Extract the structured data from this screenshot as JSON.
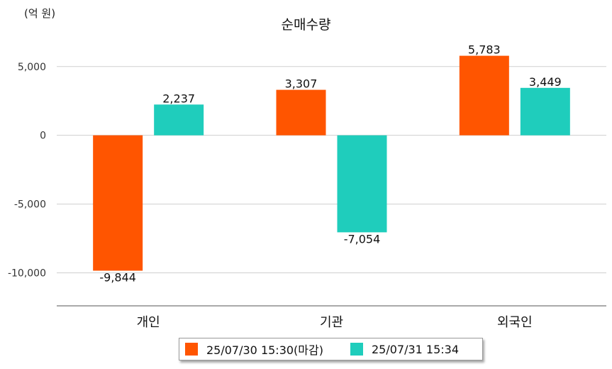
{
  "chart_data": {
    "type": "bar",
    "title": "순매수량",
    "unit_label": "(억 원)",
    "categories": [
      "개인",
      "기관",
      "외국인"
    ],
    "series": [
      {
        "name": "25/07/30 15:30(마감)",
        "color": "#ff5500",
        "values": [
          -9844,
          3307,
          5783
        ],
        "labels": [
          "-9,844",
          "3,307",
          "5,783"
        ]
      },
      {
        "name": "25/07/31 15:34",
        "color": "#1fcdbc",
        "values": [
          2237,
          -7054,
          3449
        ],
        "labels": [
          "2,237",
          "-7,054",
          "3,449"
        ]
      }
    ],
    "yticks": [
      5000,
      0,
      -5000,
      -10000
    ],
    "ytick_labels": [
      "5,000",
      "0",
      "-5,000",
      "-10,000"
    ],
    "ylim": [
      -12400,
      7000
    ],
    "grid": true,
    "legend_position": "bottom"
  }
}
